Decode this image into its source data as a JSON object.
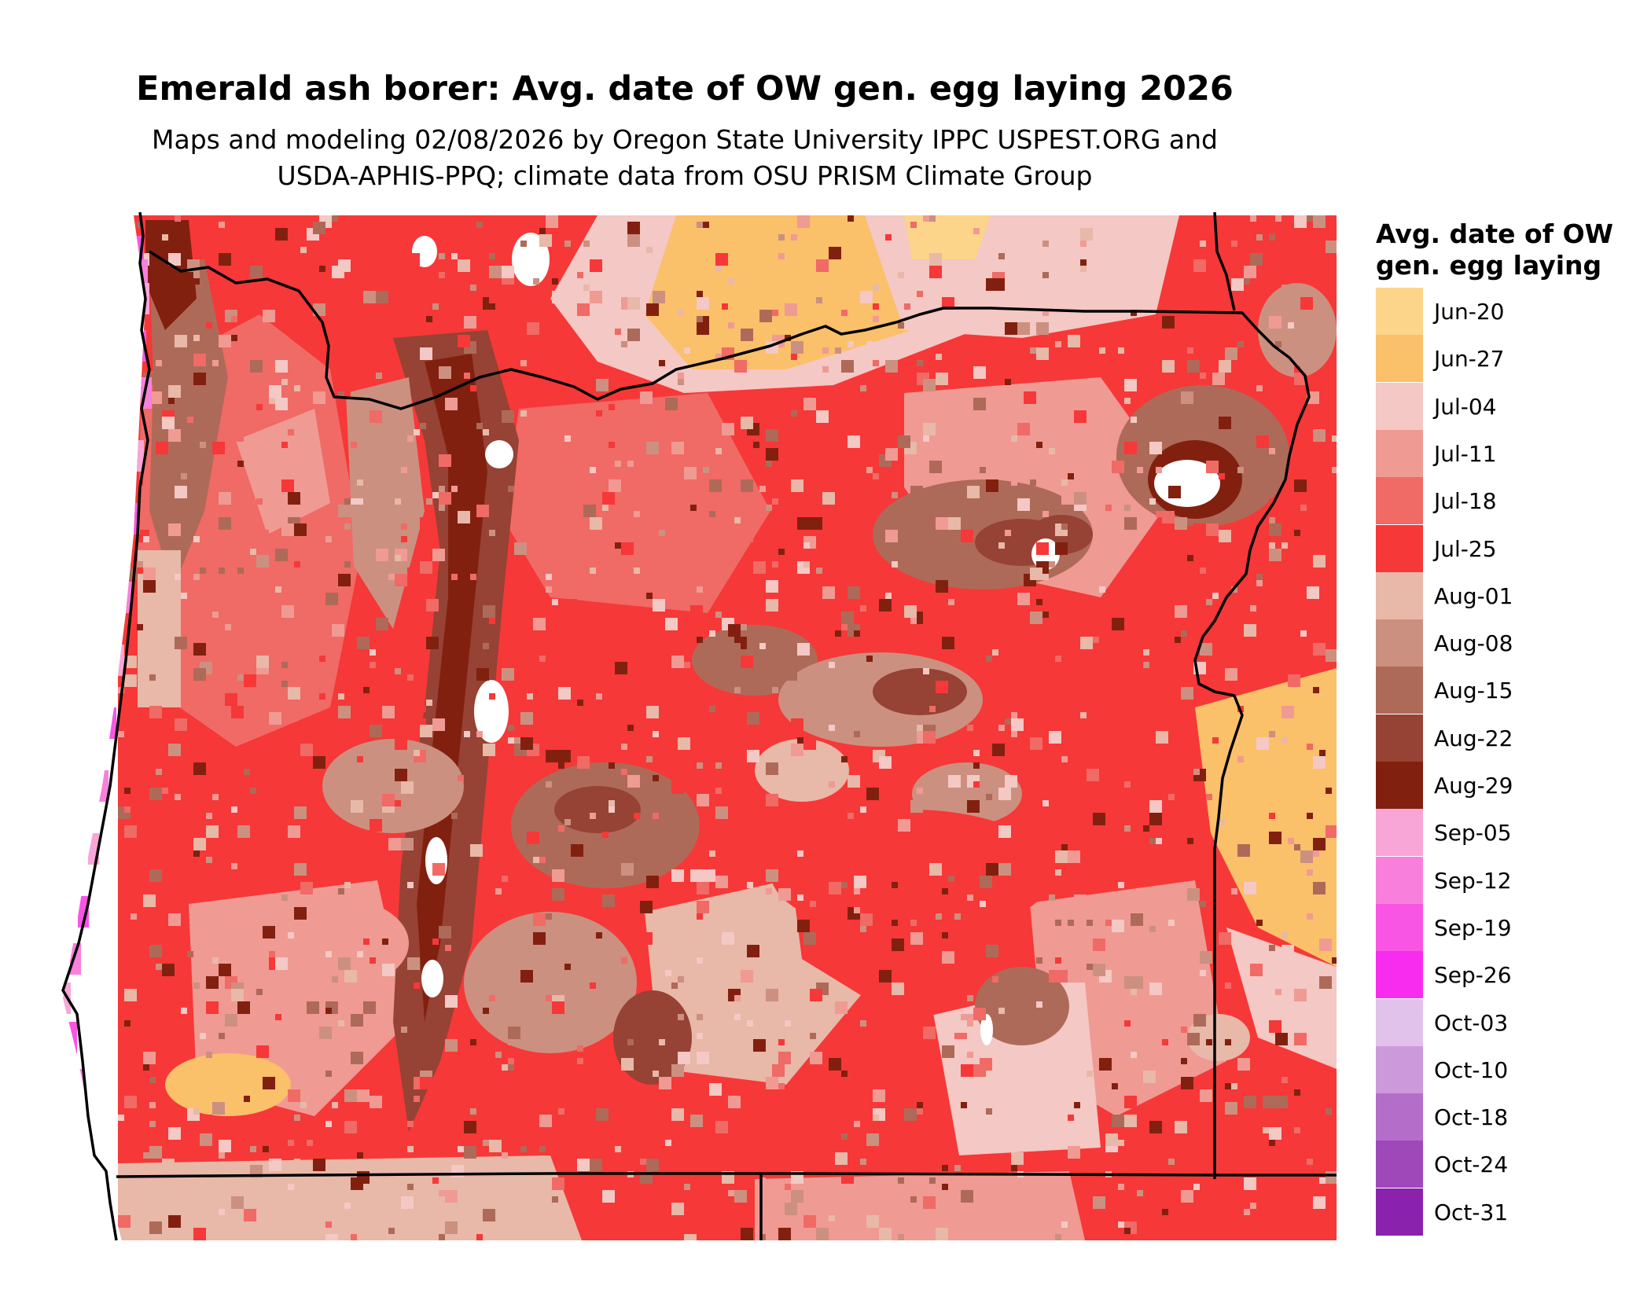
{
  "title": "Emerald ash borer: Avg. date of OW gen. egg laying 2026",
  "subtitle": {
    "line1": "Maps and modeling 02/08/2026 by Oregon State University IPPC USPEST.ORG and",
    "line2": "USDA-APHIS-PPQ; climate data from OSU PRISM Climate Group"
  },
  "legend": {
    "title_line1": "Avg. date of OW",
    "title_line2": "gen. egg laying",
    "items": [
      {
        "label": "Jun-20",
        "color": "#FCD48A"
      },
      {
        "label": "Jun-27",
        "color": "#FBC06A"
      },
      {
        "label": "Jul-04",
        "color": "#F4C8C4"
      },
      {
        "label": "Jul-11",
        "color": "#F09A94"
      },
      {
        "label": "Jul-18",
        "color": "#F06A66"
      },
      {
        "label": "Jul-25",
        "color": "#F63838"
      },
      {
        "label": "Aug-01",
        "color": "#E8B8A8"
      },
      {
        "label": "Aug-08",
        "color": "#CC9080"
      },
      {
        "label": "Aug-15",
        "color": "#AE6A58"
      },
      {
        "label": "Aug-22",
        "color": "#964234"
      },
      {
        "label": "Aug-29",
        "color": "#822010"
      },
      {
        "label": "Sep-05",
        "color": "#F8A6D8"
      },
      {
        "label": "Sep-12",
        "color": "#F880DC"
      },
      {
        "label": "Sep-19",
        "color": "#F855E4"
      },
      {
        "label": "Sep-26",
        "color": "#F82CEE"
      },
      {
        "label": "Oct-03",
        "color": "#E0C2EA"
      },
      {
        "label": "Oct-10",
        "color": "#CC9ADA"
      },
      {
        "label": "Oct-18",
        "color": "#B46ECA"
      },
      {
        "label": "Oct-24",
        "color": "#9E48BA"
      },
      {
        "label": "Oct-31",
        "color": "#8A22AE"
      }
    ]
  }
}
